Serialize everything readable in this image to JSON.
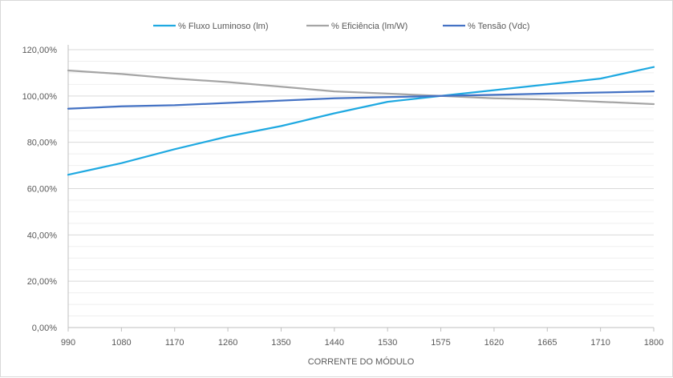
{
  "chart_data": {
    "type": "line",
    "title": "",
    "xlabel": "CORRENTE DO MÓDULO",
    "ylabel": "",
    "x_ticks": [
      "990",
      "1080",
      "1170",
      "1260",
      "1350",
      "1440",
      "1530",
      "1575",
      "1620",
      "1665",
      "1710",
      "1800"
    ],
    "y_ticks": [
      "0,00%",
      "20,00%",
      "40,00%",
      "60,00%",
      "80,00%",
      "100,00%",
      "120,00%"
    ],
    "ylim": [
      0,
      120
    ],
    "y_unit": "%",
    "grid": true,
    "minor_grid": true,
    "legend_position": "top",
    "series": [
      {
        "name": "% Fluxo Luminoso (lm)",
        "color": "#1fa9e1",
        "values": [
          66.0,
          71.0,
          77.0,
          82.5,
          87.0,
          92.5,
          97.5,
          100.0,
          102.5,
          105.0,
          107.5,
          112.5
        ]
      },
      {
        "name": "% Eficiência (lm/W)",
        "color": "#a5a5a5",
        "values": [
          111.0,
          109.5,
          107.5,
          106.0,
          104.0,
          102.0,
          101.0,
          100.0,
          99.0,
          98.5,
          97.5,
          96.5
        ]
      },
      {
        "name": "% Tensão (Vdc)",
        "color": "#4472c4",
        "values": [
          94.5,
          95.5,
          96.0,
          97.0,
          98.0,
          99.0,
          99.5,
          100.0,
          100.5,
          101.0,
          101.5,
          102.0
        ]
      }
    ]
  }
}
